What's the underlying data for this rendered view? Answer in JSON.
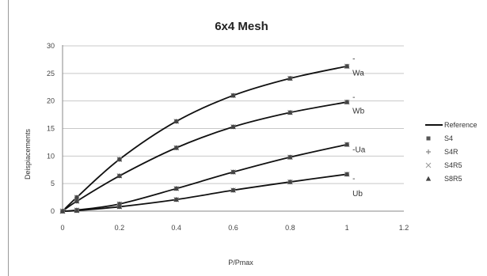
{
  "chart_data": {
    "type": "line",
    "title": "6x4 Mesh",
    "xlabel": "P/Pmax",
    "ylabel": "Deispiacements",
    "xlim": [
      0,
      1.2
    ],
    "ylim": [
      0,
      30
    ],
    "xticks": [
      "0",
      "0.2",
      "0.4",
      "0.6",
      "0.8",
      "1",
      "1.2"
    ],
    "yticks": [
      "0",
      "5",
      "10",
      "15",
      "20",
      "25",
      "30"
    ],
    "grid": "horizontal",
    "legend_position": "right",
    "legend": [
      "Reference",
      "S4",
      "S4R",
      "S4R5",
      "S8R5"
    ],
    "curve_labels": [
      {
        "text": "-",
        "anchor": [
          1.0,
          27.8
        ]
      },
      {
        "text": "Wa",
        "anchor": [
          1.0,
          25.2
        ]
      },
      {
        "text": "-",
        "anchor": [
          1.0,
          20.8
        ]
      },
      {
        "text": "Wb",
        "anchor": [
          1.0,
          18.3
        ]
      },
      {
        "text": "-Ua",
        "anchor": [
          1.0,
          11.3
        ]
      },
      {
        "text": "-",
        "anchor": [
          1.0,
          6.0
        ]
      },
      {
        "text": "Ub",
        "anchor": [
          1.0,
          3.3
        ]
      }
    ],
    "series": [
      {
        "name": "Wa",
        "x": [
          0,
          0.05,
          0.2,
          0.4,
          0.6,
          0.8,
          1.0
        ],
        "y": [
          0,
          2.5,
          9.4,
          16.3,
          21.0,
          24.1,
          26.3
        ]
      },
      {
        "name": "Wb",
        "x": [
          0,
          0.05,
          0.2,
          0.4,
          0.6,
          0.8,
          1.0
        ],
        "y": [
          0,
          1.8,
          6.4,
          11.5,
          15.3,
          17.9,
          19.8
        ]
      },
      {
        "name": "Ua",
        "x": [
          0,
          0.05,
          0.2,
          0.4,
          0.6,
          0.8,
          1.0
        ],
        "y": [
          0,
          0.2,
          1.3,
          4.1,
          7.1,
          9.8,
          12.1
        ]
      },
      {
        "name": "Ub",
        "x": [
          0,
          0.05,
          0.2,
          0.4,
          0.6,
          0.8,
          1.0
        ],
        "y": [
          0,
          0.1,
          0.8,
          2.1,
          3.8,
          5.3,
          6.7
        ]
      }
    ]
  }
}
